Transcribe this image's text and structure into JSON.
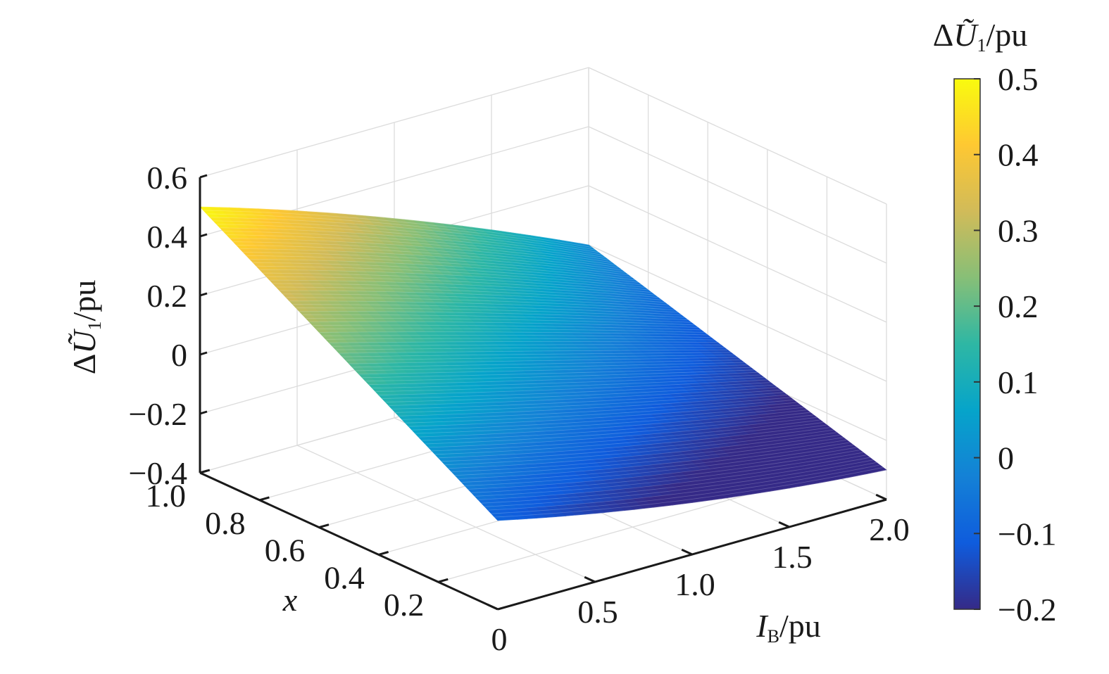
{
  "chart_data": {
    "type": "surface",
    "x": {
      "label_var": "I",
      "label_sub": "B",
      "label_unit": "/pu",
      "range": [
        0,
        2.0
      ],
      "ticks": [
        "0",
        "0.5",
        "1.0",
        "1.5",
        "2.0"
      ]
    },
    "y": {
      "label_var": "x",
      "range": [
        0,
        1.0
      ],
      "ticks": [
        "0.2",
        "0.4",
        "0.6",
        "0.8",
        "1.0"
      ]
    },
    "z": {
      "label_prefix": "Δ",
      "label_var": "Ũ",
      "label_sub": "1",
      "label_unit": "/pu",
      "range": [
        -0.4,
        0.6
      ],
      "ticks": [
        "0.6",
        "0.4",
        "0.2",
        "0",
        "−0.2",
        "−0.4"
      ]
    },
    "colorbar": {
      "label_prefix": "Δ",
      "label_var": "Ũ",
      "label_sub": "1",
      "label_unit": "/pu",
      "range": [
        -0.2,
        0.5
      ],
      "ticks": [
        "0.5",
        "0.4",
        "0.3",
        "0.2",
        "0.1",
        "0",
        "−0.1",
        "−0.2"
      ],
      "colormap": "parula",
      "colors": [
        "#352a87",
        "#0f5cdd",
        "#1481d6",
        "#06a4ca",
        "#2eb7a4",
        "#87bf77",
        "#d1bb59",
        "#fec832",
        "#f9fb0e"
      ]
    },
    "surface_corners": [
      {
        "I_B": 0.0,
        "x": 1.0,
        "value": 0.5
      },
      {
        "I_B": 2.0,
        "x": 1.0,
        "value": 0.1
      },
      {
        "I_B": 2.0,
        "x": 0.0,
        "value": -0.1
      },
      {
        "I_B": 1.7,
        "x": 0.0,
        "value": -0.2
      },
      {
        "I_B": 0.0,
        "x": 0.0,
        "value": -0.1
      }
    ],
    "grid": true,
    "colors": {
      "grid": "#dcdcdc",
      "axis": "#1a1a1a"
    }
  }
}
